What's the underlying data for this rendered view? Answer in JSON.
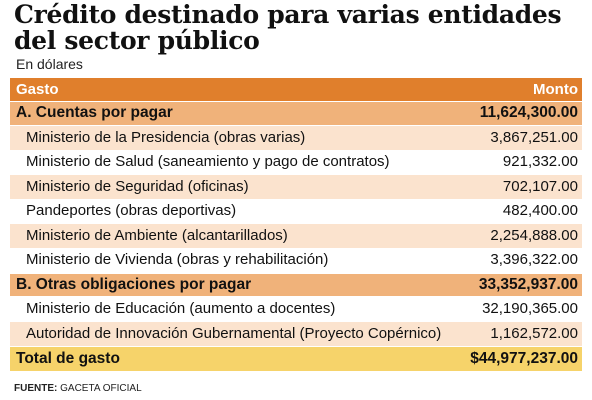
{
  "chart_data": {
    "type": "table",
    "title": "Crédito destinado para varias entidades del sector público",
    "subtitle": "En dólares",
    "columns": [
      "Gasto",
      "Monto"
    ],
    "sections": [
      {
        "label": "A. Cuentas por pagar",
        "value": "11,624,300.00",
        "items": [
          {
            "label": "Ministerio de la Presidencia (obras varias)",
            "value": "3,867,251.00"
          },
          {
            "label": "Ministerio de Salud (saneamiento y pago de contratos)",
            "value": "921,332.00"
          },
          {
            "label": "Ministerio de Seguridad (oficinas)",
            "value": "702,107.00"
          },
          {
            "label": "Pandeportes (obras deportivas)",
            "value": "482,400.00"
          },
          {
            "label": "Ministerio de Ambiente (alcantarillados)",
            "value": "2,254,888.00"
          },
          {
            "label": "Ministerio de Vivienda (obras y rehabilitación)",
            "value": "3,396,322.00"
          }
        ]
      },
      {
        "label": "B. Otras obligaciones por pagar",
        "value": "33,352,937.00",
        "items": [
          {
            "label": "Ministerio de Educación (aumento a docentes)",
            "value": "32,190,365.00"
          },
          {
            "label": "Autoridad de Innovación Gubernamental (Proyecto Copérnico)",
            "value": "1,162,572.00"
          }
        ]
      }
    ],
    "total": {
      "label": "Total de gasto",
      "value": "$44,977,237.00"
    },
    "source": {
      "key": "FUENTE:",
      "text": "GACETA OFICIAL"
    }
  },
  "colors": {
    "header": "#e07f2c",
    "section": "#f0b27a",
    "shaded_row": "#fbe3ce",
    "total": "#f6d36a"
  }
}
